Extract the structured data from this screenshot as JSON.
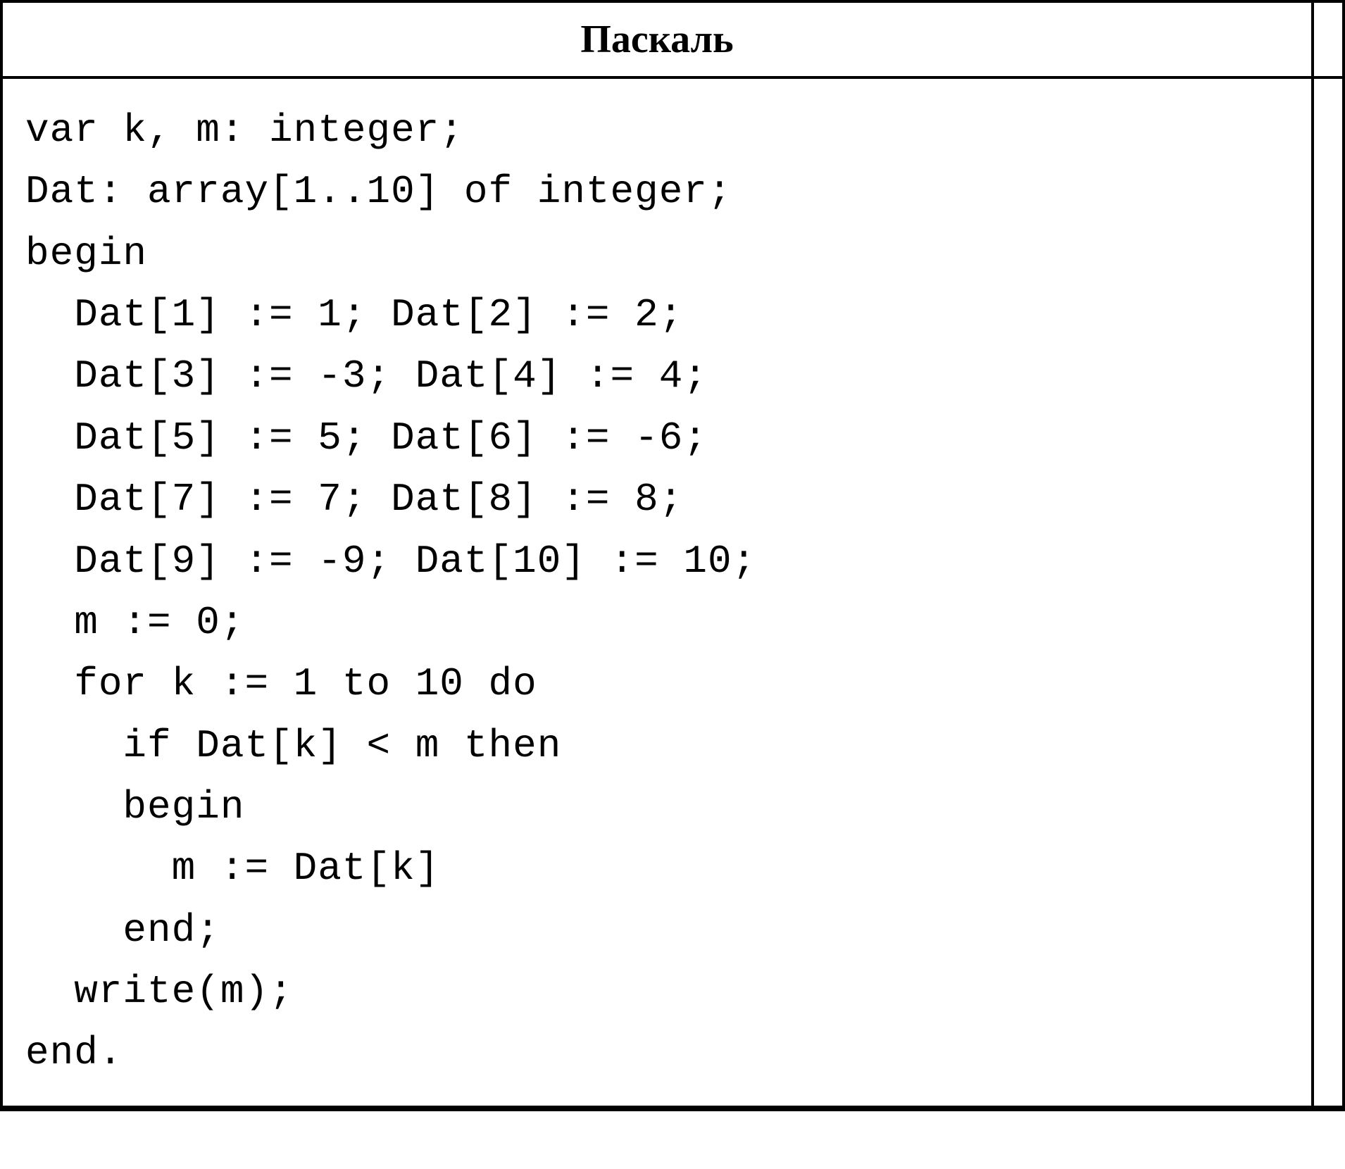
{
  "table": {
    "header": {
      "title": "Паскаль",
      "font_family": "Times New Roman",
      "font_weight": "bold",
      "font_size": 56,
      "text_align": "center",
      "border_color": "#000000",
      "border_width": 4
    },
    "code": {
      "font_family": "Courier New",
      "font_size": 56,
      "line_height": 1.56,
      "color": "#000000",
      "lines": [
        "var k, m: integer;",
        "Dat: array[1..10] of integer;",
        "begin",
        "  Dat[1] := 1; Dat[2] := 2;",
        "  Dat[3] := -3; Dat[4] := 4;",
        "  Dat[5] := 5; Dat[6] := -6;",
        "  Dat[7] := 7; Dat[8] := 8;",
        "  Dat[9] := -9; Dat[10] := 10;",
        "  m := 0;",
        "  for k := 1 to 10 do",
        "    if Dat[k] < m then",
        "    begin",
        "      m := Dat[k]",
        "    end;",
        "  write(m);",
        "end."
      ]
    },
    "layout": {
      "container_width": 1910,
      "container_height": 1660,
      "background_color": "#ffffff",
      "border_color": "#000000",
      "border_width": 4,
      "right_spacer_width": 40
    }
  }
}
